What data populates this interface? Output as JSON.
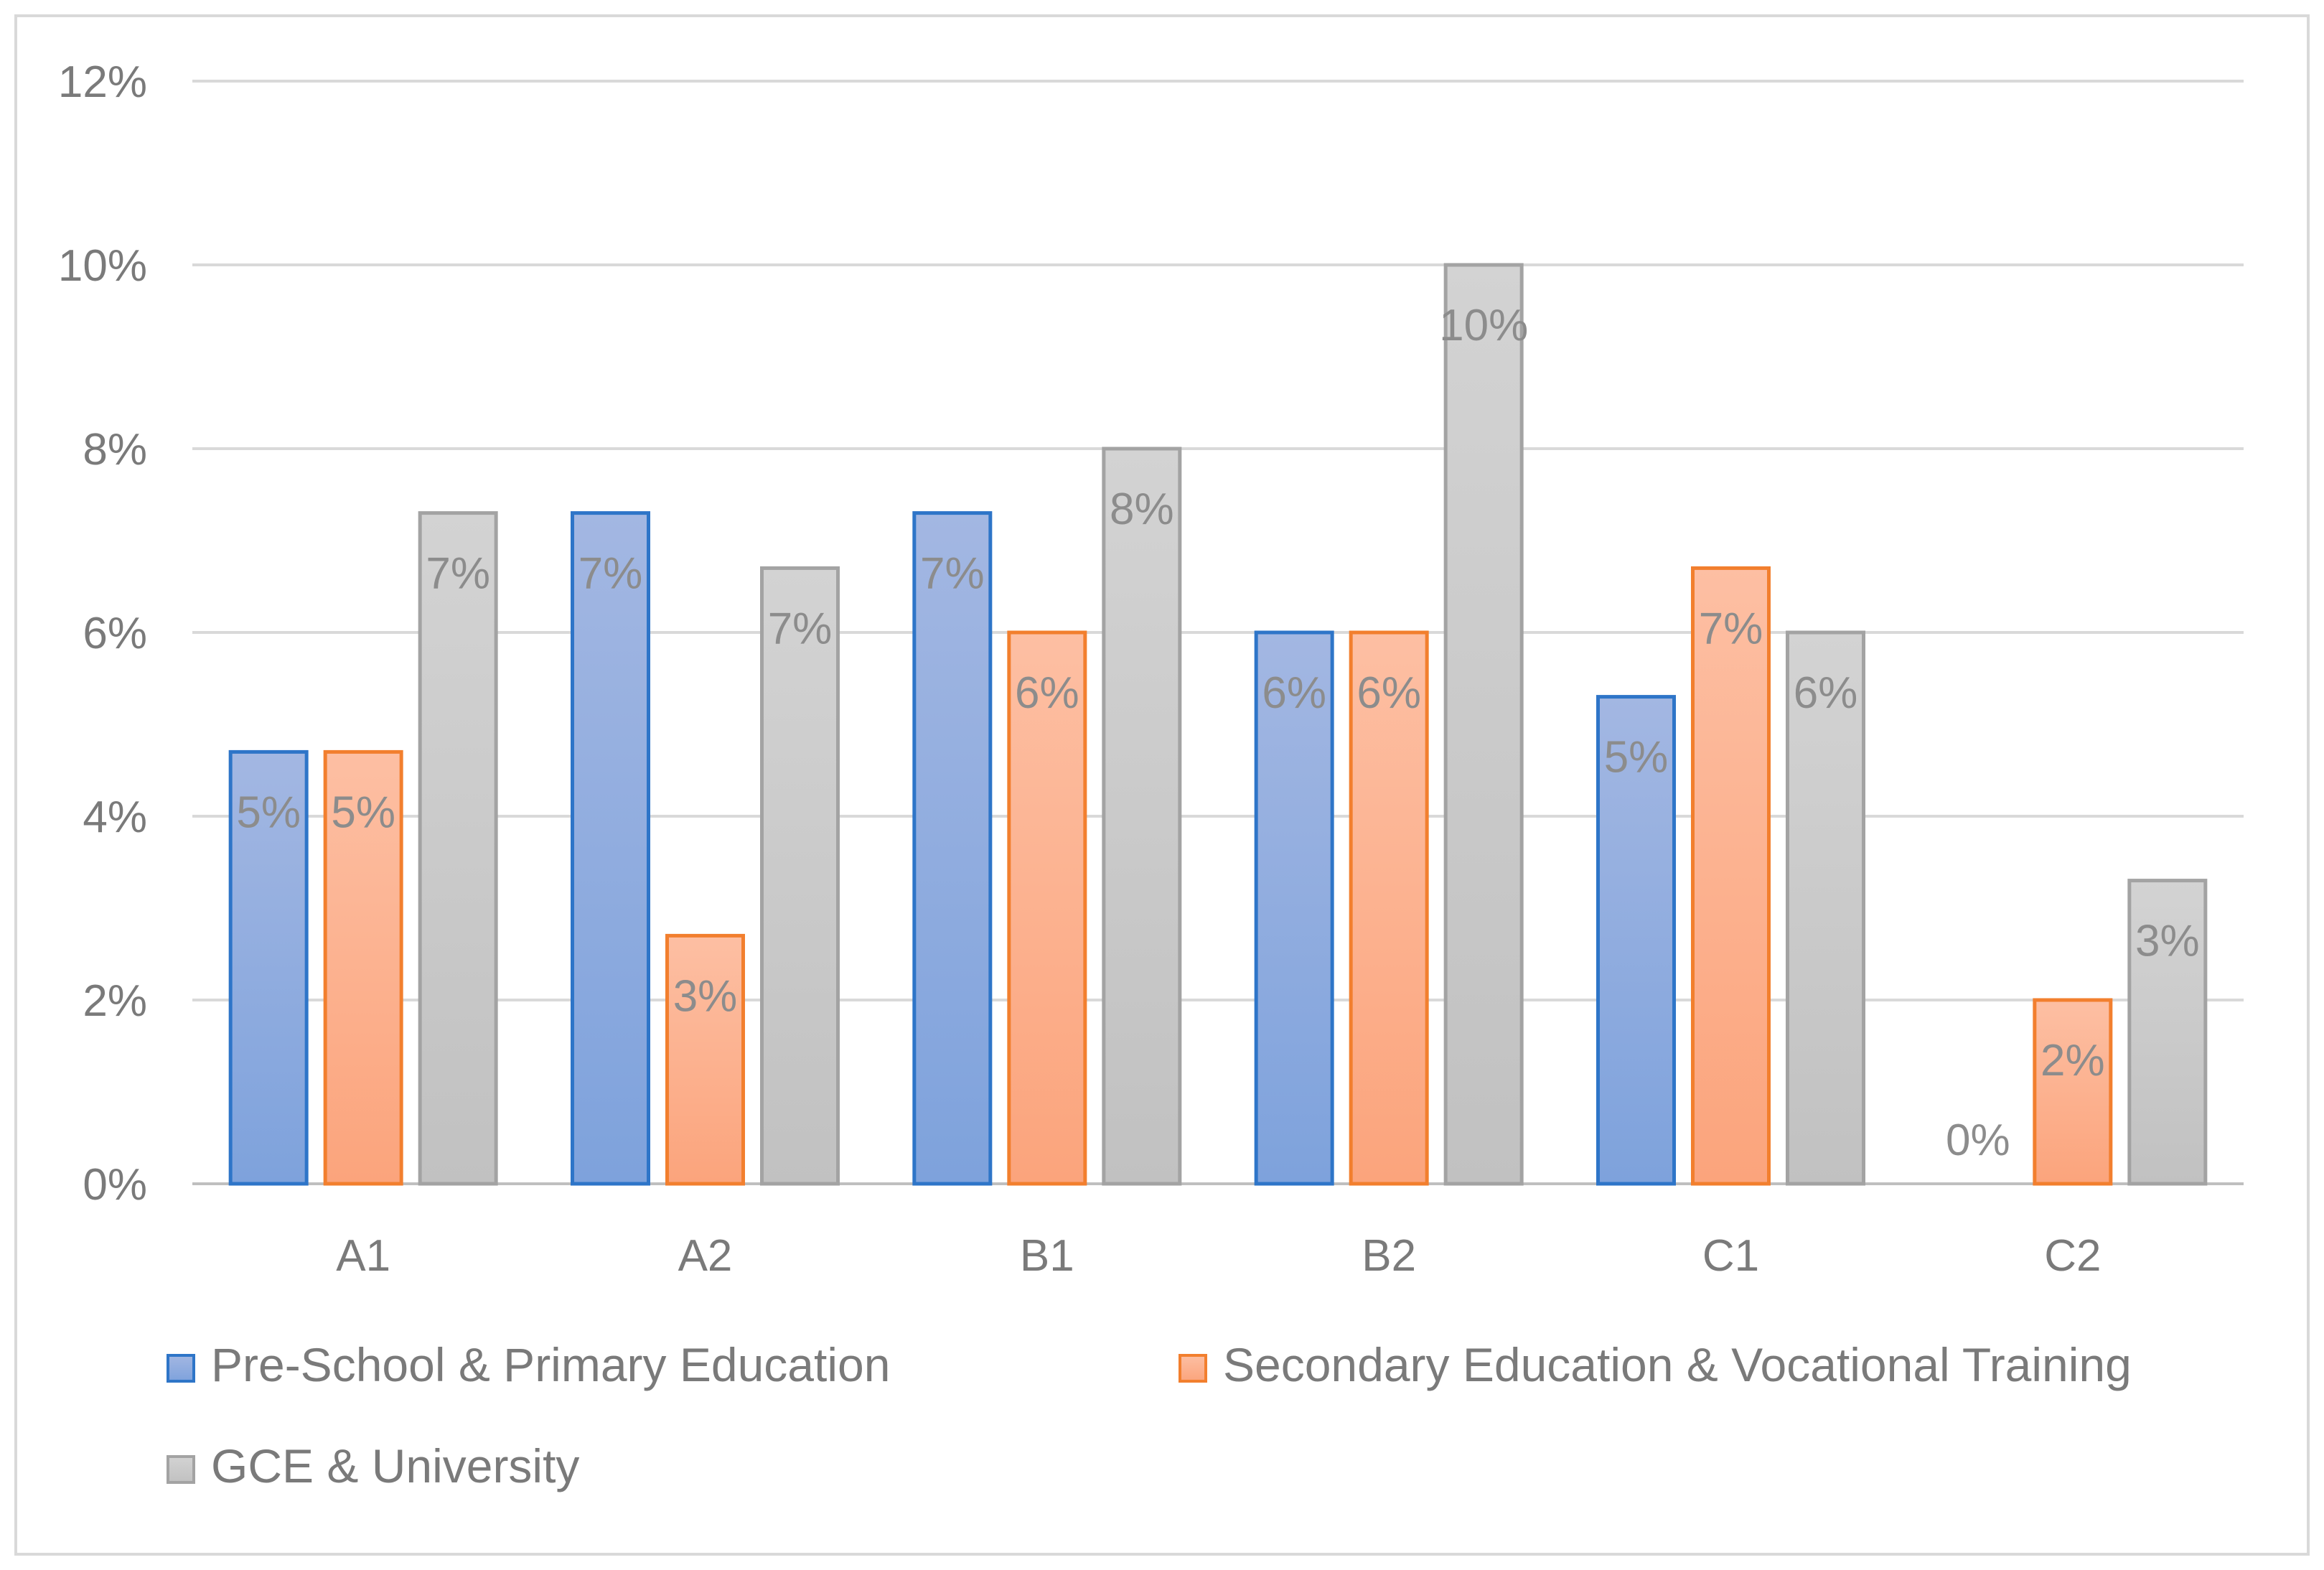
{
  "chart_data": {
    "type": "bar",
    "title": "",
    "xlabel": "",
    "ylabel": "",
    "ylim": [
      0,
      12
    ],
    "yticks": [
      "0%",
      "2%",
      "4%",
      "6%",
      "8%",
      "10%",
      "12%"
    ],
    "grid": true,
    "legend_position": "bottom",
    "categories": [
      "A1",
      "A2",
      "B1",
      "B2",
      "C1",
      "C2"
    ],
    "series": [
      {
        "name": "Pre-School & Primary Education",
        "values": [
          4.7,
          7.3,
          7.3,
          6.0,
          5.3,
          0
        ],
        "labels": [
          "5%",
          "7%",
          "7%",
          "6%",
          "5%",
          "0%"
        ],
        "stroke": "#2e75c8",
        "fill_top": "#a3b7e2",
        "fill_bottom": "#7ea2dc"
      },
      {
        "name": "Secondary Education & Vocational Training",
        "values": [
          4.7,
          2.7,
          6.0,
          6.0,
          6.7,
          2.0
        ],
        "labels": [
          "5%",
          "3%",
          "6%",
          "6%",
          "7%",
          "2%"
        ],
        "stroke": "#f27f2e",
        "fill_top": "#fdbfa3",
        "fill_bottom": "#fba47c"
      },
      {
        "name": "GCE & University",
        "values": [
          7.3,
          6.7,
          8.0,
          10.0,
          6.0,
          3.3
        ],
        "labels": [
          "7%",
          "7%",
          "8%",
          "10%",
          "6%",
          "3%"
        ],
        "stroke": "#a3a3a3",
        "fill_top": "#d3d3d3",
        "fill_bottom": "#c1c1c1"
      }
    ]
  }
}
